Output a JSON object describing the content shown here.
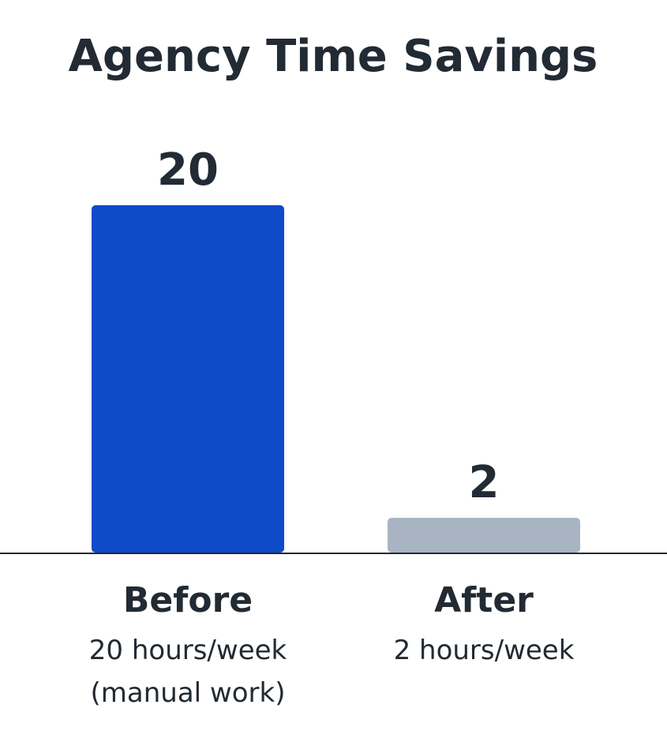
{
  "chart_data": {
    "type": "bar",
    "title": "Agency Time Savings",
    "xlabel": "",
    "ylabel": "",
    "ylim": [
      0,
      20
    ],
    "grid": false,
    "legend": "none",
    "categories": [
      "Before",
      "After"
    ],
    "values": [
      20,
      2
    ],
    "data_labels": [
      "20",
      "2"
    ],
    "category_sublabels": [
      [
        "20 hours/week",
        "(manual work)"
      ],
      [
        "2 hours/week"
      ]
    ],
    "colors": [
      "#0f4bc8",
      "#a9b4c2"
    ],
    "axis_color": "#222a33"
  }
}
